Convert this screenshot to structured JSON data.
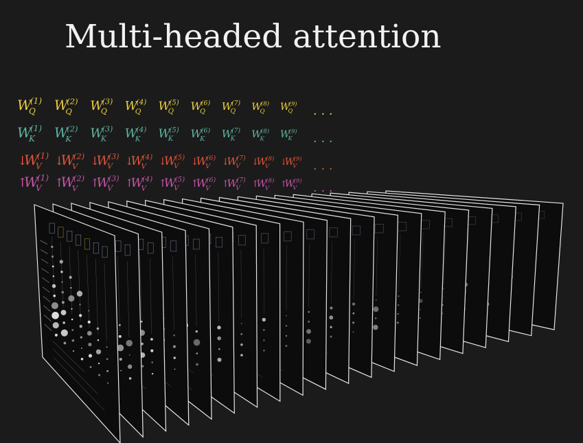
{
  "title": "Multi-headed attention",
  "colors": {
    "background": "#1b1b1b",
    "query": "#e8cf3e",
    "key": "#5fb5a3",
    "value_down": "#e0553b",
    "value_up": "#c455a8"
  },
  "matrices": [
    {
      "name": "query-row",
      "base": "W",
      "subscript": "Q",
      "prefix": "",
      "color_key": "query",
      "superscripts": [
        "(1)",
        "(2)",
        "(3)",
        "(4)",
        "(5)",
        "(6)",
        "(7)",
        "(8)",
        "(9)"
      ],
      "ellipsis": "· · ·"
    },
    {
      "name": "key-row",
      "base": "W",
      "subscript": "K",
      "prefix": "",
      "color_key": "key",
      "superscripts": [
        "(1)",
        "(2)",
        "(3)",
        "(4)",
        "(5)",
        "(6)",
        "(7)",
        "(8)",
        "(9)"
      ],
      "ellipsis": "· · ·"
    },
    {
      "name": "value-down-row",
      "base": "W",
      "subscript": "V",
      "prefix": "↓",
      "color_key": "value_down",
      "superscripts": [
        "(1)",
        "(2)",
        "(3)",
        "(4)",
        "(5)",
        "(6)",
        "(7)",
        "(8)",
        "(9)"
      ],
      "ellipsis": "· · ·"
    },
    {
      "name": "value-up-row",
      "base": "W",
      "subscript": "V",
      "prefix": "↑",
      "color_key": "value_up",
      "superscripts": [
        "(1)",
        "(2)",
        "(3)",
        "(4)",
        "(5)",
        "(6)",
        "(7)",
        "(8)",
        "(9)"
      ],
      "ellipsis": "· · ·"
    }
  ],
  "panels": {
    "count": 20,
    "description_icon": "attention-pattern-panel"
  }
}
